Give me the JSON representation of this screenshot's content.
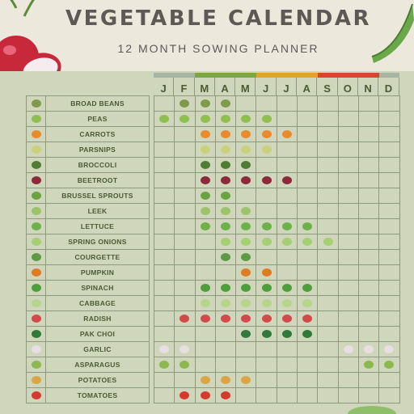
{
  "header": {
    "title": "VEGETABLE CALENDAR",
    "subtitle": "12 MONTH SOWING PLANNER"
  },
  "months": [
    "J",
    "F",
    "M",
    "A",
    "M",
    "J",
    "J",
    "A",
    "S",
    "O",
    "N",
    "D"
  ],
  "season_colors": [
    "#a7b5a5",
    "#7ba83a",
    "#e3a22a",
    "#d9452e",
    "#a7b5a5"
  ],
  "vegetables": [
    {
      "name": "BROAD BEANS",
      "icon": "broad-beans-icon",
      "color": "#7f9a4a",
      "months": [
        2,
        3,
        4
      ]
    },
    {
      "name": "PEAS",
      "icon": "peas-icon",
      "color": "#8fbf4f",
      "months": [
        1,
        2,
        3,
        4,
        5,
        6
      ]
    },
    {
      "name": "CARROTS",
      "icon": "carrot-icon",
      "color": "#e98a2c",
      "months": [
        3,
        4,
        5,
        6,
        7
      ]
    },
    {
      "name": "PARSNIPS",
      "icon": "parsnip-icon",
      "color": "#c9d27a",
      "months": [
        3,
        4,
        5,
        6
      ]
    },
    {
      "name": "BROCCOLI",
      "icon": "broccoli-icon",
      "color": "#4f7d33",
      "months": [
        3,
        4,
        5
      ]
    },
    {
      "name": "BEETROOT",
      "icon": "beetroot-icon",
      "color": "#8c2a3a",
      "months": [
        3,
        4,
        5,
        6,
        7
      ]
    },
    {
      "name": "BRUSSEL SPROUTS",
      "icon": "brussel-sprouts-icon",
      "color": "#6aa43f",
      "months": [
        3,
        4
      ]
    },
    {
      "name": "LEEK",
      "icon": "leek-icon",
      "color": "#9cc36a",
      "months": [
        3,
        4,
        5
      ]
    },
    {
      "name": "LETTUCE",
      "icon": "lettuce-icon",
      "color": "#6bb24a",
      "months": [
        3,
        4,
        5,
        6,
        7,
        8
      ]
    },
    {
      "name": "SPRING ONIONS",
      "icon": "spring-onion-icon",
      "color": "#a4cf72",
      "months": [
        4,
        5,
        6,
        7,
        8,
        9
      ]
    },
    {
      "name": "COURGETTE",
      "icon": "courgette-icon",
      "color": "#5e9a46",
      "months": [
        4,
        5
      ]
    },
    {
      "name": "PUMPKIN",
      "icon": "pumpkin-icon",
      "color": "#e07b1f",
      "months": [
        5,
        6
      ]
    },
    {
      "name": "SPINACH",
      "icon": "spinach-icon",
      "color": "#4e9e3c",
      "months": [
        3,
        4,
        5,
        6,
        7,
        8
      ]
    },
    {
      "name": "CABBAGE",
      "icon": "cabbage-icon",
      "color": "#b6d58a",
      "months": [
        3,
        4,
        5,
        6,
        7,
        8
      ]
    },
    {
      "name": "RADISH",
      "icon": "radish-icon",
      "color": "#d24a4a",
      "months": [
        2,
        3,
        4,
        5,
        6,
        7,
        8
      ]
    },
    {
      "name": "PAK CHOI",
      "icon": "pak-choi-icon",
      "color": "#2f7a3a",
      "months": [
        5,
        6,
        7,
        8
      ]
    },
    {
      "name": "GARLIC",
      "icon": "garlic-icon",
      "color": "#e8dfe0",
      "months": [
        1,
        2,
        10,
        11,
        12
      ]
    },
    {
      "name": "ASPARAGUS",
      "icon": "asparagus-icon",
      "color": "#8cb84d",
      "months": [
        1,
        2,
        11,
        12
      ]
    },
    {
      "name": "POTATOES",
      "icon": "potato-icon",
      "color": "#d9a545",
      "months": [
        3,
        4,
        5
      ]
    },
    {
      "name": "TOMATOES",
      "icon": "tomato-icon",
      "color": "#d63a2c",
      "months": [
        2,
        3,
        4
      ]
    }
  ]
}
